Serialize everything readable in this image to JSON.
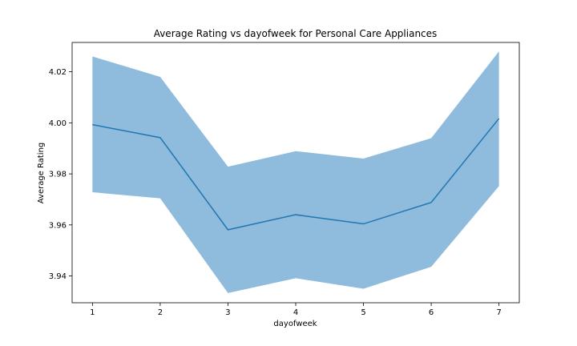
{
  "chart_data": {
    "type": "line",
    "title": "Average Rating vs dayofweek for Personal Care Appliances",
    "xlabel": "dayofweek",
    "ylabel": "Average Rating",
    "x": [
      1,
      2,
      3,
      4,
      5,
      6,
      7
    ],
    "xticks": [
      "1",
      "2",
      "3",
      "4",
      "5",
      "6",
      "7"
    ],
    "yticks": [
      "3.94",
      "3.96",
      "3.98",
      "4.00",
      "4.02"
    ],
    "ytick_values": [
      3.94,
      3.96,
      3.98,
      4.0,
      4.02
    ],
    "xlim": [
      0.7,
      7.3
    ],
    "ylim": [
      3.9295,
      4.0315
    ],
    "grid": false,
    "series": [
      {
        "values": [
          3.9993,
          3.9942,
          3.9581,
          3.964,
          3.9604,
          3.9688,
          4.0017
        ],
        "ci_lower": [
          3.9728,
          3.9704,
          3.9333,
          3.9391,
          3.935,
          3.9436,
          3.9752
        ],
        "ci_upper": [
          4.026,
          4.018,
          3.9828,
          3.9889,
          3.986,
          3.994,
          4.028
        ],
        "color": "#1f77b4",
        "band_color": "#8fbbdc"
      }
    ]
  }
}
